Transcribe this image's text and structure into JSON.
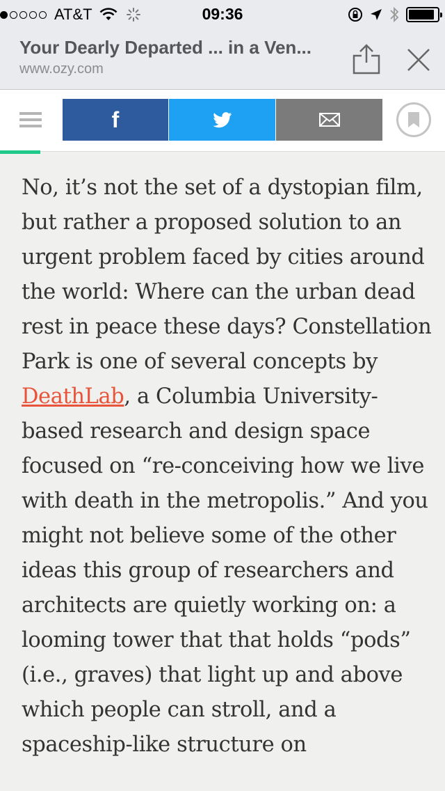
{
  "status": {
    "signal_dots_total": 5,
    "signal_dots_filled": 1,
    "carrier": "AT&T",
    "time": "09:36",
    "battery_level": 0.9,
    "icons": [
      "wifi-icon",
      "activity-spinner-icon",
      "rotation-lock-icon",
      "location-icon",
      "bluetooth-icon",
      "battery-icon"
    ]
  },
  "browser": {
    "title": "Your Dearly Departed ... in a Ven...",
    "url": "www.ozy.com",
    "icons": [
      "share-icon",
      "close-icon"
    ]
  },
  "nav": {
    "facebook_label": "f",
    "icons": [
      "menu-icon",
      "twitter-icon",
      "mail-icon",
      "bookmark-icon"
    ],
    "colors": {
      "facebook": "#2d5b9e",
      "twitter": "#1ea1f2",
      "mail": "#7b7b7b",
      "progress": "#1ec98a"
    },
    "reading_progress": 0.09
  },
  "article": {
    "text_before_link": "No, it’s not the set of a dystopian film, but rather a proposed solution to an urgent problem faced by cities around the world: Where can the urban dead rest in peace these days? Constellation Park is one of several concepts by ",
    "link_text": "DeathLab",
    "text_after_link": ", a Columbia University-based research and design space focused on “re-conceiving how we live with death in the metropolis.” And you might not believe some of the other ideas this group of researchers and architects are quietly working on: a looming tower that that holds “pods” (i.e., graves) that light up and above which people can stroll, and a spaceship-like structure on",
    "link_color": "#e8533a"
  }
}
